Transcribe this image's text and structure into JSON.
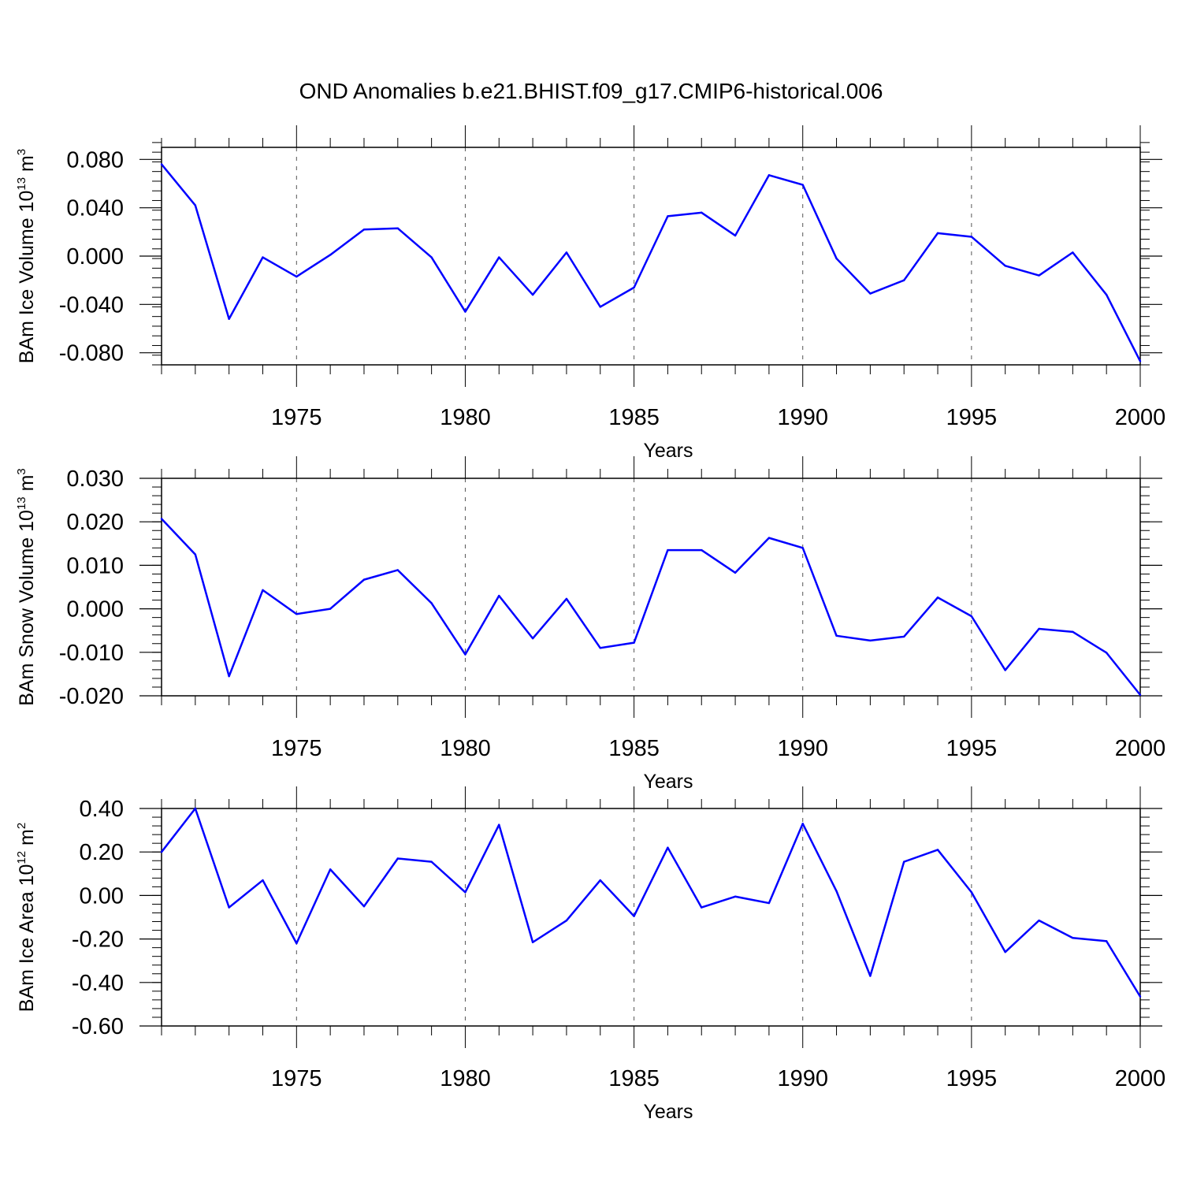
{
  "title": "OND Anomalies b.e21.BHIST.f09_g17.CMIP6-historical.006",
  "line_color": "#0000ff",
  "chart_data": [
    {
      "type": "line",
      "ylabel": {
        "main": "BAm Ice Volume 10",
        "exp": "13",
        "unit": " m",
        "unit_exp": "3"
      },
      "xlabel": "Years",
      "xlim": [
        1971,
        2000
      ],
      "ylim": [
        -0.09,
        0.09
      ],
      "xticks": [
        1975,
        1980,
        1985,
        1990,
        1995,
        2000
      ],
      "xtick_labels": [
        "1975",
        "1980",
        "1985",
        "1990",
        "1995",
        "2000"
      ],
      "yticks": [
        0.08,
        0.04,
        0.0,
        -0.04,
        -0.08
      ],
      "ytick_labels": [
        "0.080",
        "0.040",
        "0.000",
        "-0.040",
        "-0.080"
      ],
      "y_minor_step": 0.008,
      "grid": "dashed vertical at major x ticks",
      "x": [
        1971,
        1972,
        1973,
        1974,
        1975,
        1976,
        1977,
        1978,
        1979,
        1980,
        1981,
        1982,
        1983,
        1984,
        1985,
        1986,
        1987,
        1988,
        1989,
        1990,
        1991,
        1992,
        1993,
        1994,
        1995,
        1996,
        1997,
        1998,
        1999,
        2000
      ],
      "values": [
        0.076,
        0.042,
        -0.052,
        -0.001,
        -0.017,
        0.001,
        0.022,
        0.023,
        -0.001,
        -0.046,
        -0.001,
        -0.032,
        0.003,
        -0.042,
        -0.026,
        0.033,
        0.036,
        0.017,
        0.067,
        0.059,
        -0.002,
        -0.031,
        -0.02,
        0.019,
        0.016,
        -0.008,
        -0.016,
        0.003,
        -0.032,
        -0.087
      ]
    },
    {
      "type": "line",
      "ylabel": {
        "main": "BAm Snow Volume 10",
        "exp": "13",
        "unit": " m",
        "unit_exp": "3"
      },
      "xlabel": "Years",
      "xlim": [
        1971,
        2000
      ],
      "ylim": [
        -0.02,
        0.03
      ],
      "xticks": [
        1975,
        1980,
        1985,
        1990,
        1995,
        2000
      ],
      "xtick_labels": [
        "1975",
        "1980",
        "1985",
        "1990",
        "1995",
        "2000"
      ],
      "yticks": [
        0.03,
        0.02,
        0.01,
        0.0,
        -0.01,
        -0.02
      ],
      "ytick_labels": [
        "0.030",
        "0.020",
        "0.010",
        "0.000",
        "-0.010",
        "-0.020"
      ],
      "y_minor_step": 0.002,
      "grid": "dashed vertical at major x ticks",
      "x": [
        1971,
        1972,
        1973,
        1974,
        1975,
        1976,
        1977,
        1978,
        1979,
        1980,
        1981,
        1982,
        1983,
        1984,
        1985,
        1986,
        1987,
        1988,
        1989,
        1990,
        1991,
        1992,
        1993,
        1994,
        1995,
        1996,
        1997,
        1998,
        1999,
        2000
      ],
      "values": [
        0.0207,
        0.0125,
        -0.0155,
        0.0043,
        -0.0012,
        0.0,
        0.0067,
        0.0089,
        0.0013,
        -0.0105,
        0.003,
        -0.0068,
        0.0023,
        -0.009,
        -0.0078,
        0.0135,
        0.0135,
        0.0083,
        0.0163,
        0.014,
        -0.0062,
        -0.0073,
        -0.0064,
        0.0026,
        -0.0017,
        -0.0141,
        -0.0046,
        -0.0053,
        -0.0101,
        -0.0198
      ]
    },
    {
      "type": "line",
      "ylabel": {
        "main": "BAm Ice Area 10",
        "exp": "12",
        "unit": " m",
        "unit_exp": "2"
      },
      "xlabel": "Years",
      "xlim": [
        1971,
        2000
      ],
      "ylim": [
        -0.6,
        0.4
      ],
      "xticks": [
        1975,
        1980,
        1985,
        1990,
        1995,
        2000
      ],
      "xtick_labels": [
        "1975",
        "1980",
        "1985",
        "1990",
        "1995",
        "2000"
      ],
      "yticks": [
        0.4,
        0.2,
        0.0,
        -0.2,
        -0.4,
        -0.6
      ],
      "ytick_labels": [
        "0.40",
        "0.20",
        "0.00",
        "-0.20",
        "-0.40",
        "-0.60"
      ],
      "y_minor_step": 0.04,
      "grid": "dashed vertical at major x ticks",
      "x": [
        1971,
        1972,
        1973,
        1974,
        1975,
        1976,
        1977,
        1978,
        1979,
        1980,
        1981,
        1982,
        1983,
        1984,
        1985,
        1986,
        1987,
        1988,
        1989,
        1990,
        1991,
        1992,
        1993,
        1994,
        1995,
        1996,
        1997,
        1998,
        1999,
        2000
      ],
      "values": [
        0.2,
        0.4,
        -0.055,
        0.07,
        -0.22,
        0.12,
        -0.05,
        0.17,
        0.155,
        0.015,
        0.325,
        -0.215,
        -0.115,
        0.07,
        -0.095,
        0.22,
        -0.055,
        -0.005,
        -0.035,
        0.33,
        0.02,
        -0.37,
        0.155,
        0.21,
        0.015,
        -0.26,
        -0.115,
        -0.195,
        -0.21,
        -0.465
      ]
    }
  ]
}
